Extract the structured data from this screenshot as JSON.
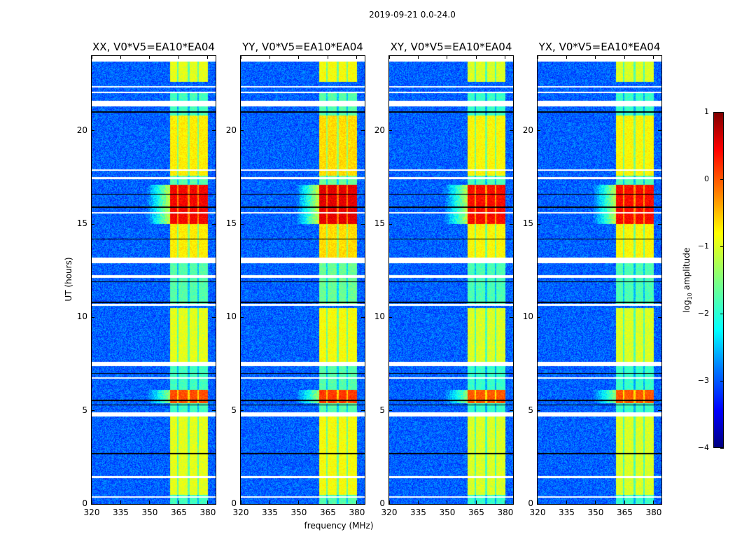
{
  "figure_title": "2019-09-21 0.0-24.0",
  "chart_data": {
    "type": "heatmap",
    "title": "2019-09-21 0.0-24.0",
    "xlabel": "frequency (MHz)",
    "ylabel": "UT (hours)",
    "xlim": [
      320,
      384
    ],
    "ylim": [
      0,
      24
    ],
    "xticks": [
      "320",
      "335",
      "350",
      "365",
      "380"
    ],
    "xtick_values": [
      320,
      335,
      350,
      365,
      380
    ],
    "yticks": [
      "0",
      "5",
      "10",
      "15",
      "20"
    ],
    "ytick_values": [
      0,
      5,
      10,
      15,
      20
    ],
    "panels": [
      {
        "title": "XX, V0*V5=EA10*EA04",
        "band_offset": 0.0
      },
      {
        "title": "YY, V0*V5=EA10*EA04",
        "band_offset": 0.1
      },
      {
        "title": "XY, V0*V5=EA10*EA04",
        "band_offset": -0.05
      },
      {
        "title": "YX, V0*V5=EA10*EA04",
        "band_offset": -0.05
      }
    ],
    "colorbar": {
      "label_prefix": "log",
      "label_sub": "10",
      "label_suffix": " amplitude",
      "range": [
        -4,
        1
      ],
      "ticks": [
        "1",
        "0",
        "−1",
        "−2",
        "−3",
        "−4"
      ],
      "tick_values": [
        1,
        0,
        -1,
        -2,
        -3,
        -4
      ],
      "colormap": "jet"
    },
    "background_level": -2.9,
    "bright_channels_mhz": [
      [
        360.4,
        364.0
      ],
      [
        365.0,
        369.5
      ],
      [
        370.5,
        374.5
      ],
      [
        375.5,
        380.0
      ]
    ],
    "band_level_segments_hours": [
      {
        "t": [
          0.0,
          0.5
        ],
        "level": -1.8
      },
      {
        "t": [
          0.5,
          4.7
        ],
        "level": -1.0
      },
      {
        "t": [
          4.9,
          5.4
        ],
        "level": -1.8
      },
      {
        "t": [
          5.4,
          6.1
        ],
        "level": 0.0
      },
      {
        "t": [
          6.1,
          7.5
        ],
        "level": -1.8
      },
      {
        "t": [
          7.5,
          10.5
        ],
        "level": -1.0
      },
      {
        "t": [
          10.6,
          13.0
        ],
        "level": -1.7
      },
      {
        "t": [
          13.2,
          15.0
        ],
        "level": -0.8
      },
      {
        "t": [
          15.0,
          17.1
        ],
        "level": 0.4
      },
      {
        "t": [
          17.1,
          17.6
        ],
        "level": -1.7
      },
      {
        "t": [
          17.6,
          20.8
        ],
        "level": -0.8
      },
      {
        "t": [
          20.8,
          22.0
        ],
        "level": -1.8
      },
      {
        "t": [
          22.6,
          23.7
        ],
        "level": -1.0
      }
    ],
    "flagged_hours": [
      [
        0.35,
        0.42
      ],
      [
        1.4,
        1.5
      ],
      [
        4.7,
        4.9
      ],
      [
        6.7,
        6.78
      ],
      [
        7.38,
        7.6
      ],
      [
        10.6,
        10.72
      ],
      [
        12.1,
        12.25
      ],
      [
        12.9,
        13.2
      ],
      [
        15.55,
        15.62
      ],
      [
        17.4,
        17.5
      ],
      [
        17.85,
        17.92
      ],
      [
        21.3,
        21.6
      ],
      [
        22.0,
        22.1
      ],
      [
        22.3,
        22.4
      ],
      [
        23.7,
        24.0
      ]
    ],
    "dropout_hours": [
      2.7,
      5.3,
      5.55,
      7.0,
      10.8,
      11.9,
      14.2,
      15.9,
      16.6,
      21.0,
      21.4
    ]
  }
}
